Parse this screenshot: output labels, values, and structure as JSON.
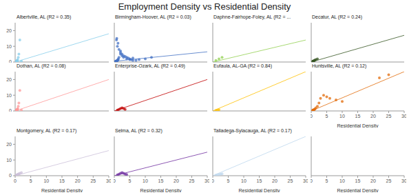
{
  "title": "Employment Density vs Residential Density",
  "chart_data": [
    {
      "type": "scatter",
      "title": "Albertville, AL (R2 = 0.35)",
      "xlim": [
        0,
        30
      ],
      "ylim": [
        0,
        25
      ],
      "yticks": [
        0,
        10,
        20
      ],
      "tick_labels": "y",
      "series": [
        {
          "type": "scatter",
          "color": "#87CEEB",
          "x": [
            0.2,
            0.3,
            0.4,
            0.5,
            0.6,
            0.8,
            1.0,
            1.2,
            1.5,
            2.0,
            0.3,
            0.5,
            0.7
          ],
          "values": [
            0.2,
            0.3,
            0.5,
            0.5,
            1.0,
            1.5,
            3.0,
            5.0,
            14.0,
            0.5,
            0.3,
            0.4,
            0.6
          ]
        },
        {
          "type": "line",
          "color": "#87CEEB",
          "x": [
            0,
            30
          ],
          "values": [
            0,
            18
          ]
        }
      ]
    },
    {
      "type": "scatter",
      "title": "Birmingham-Hoover, AL (R2 = 0.03)",
      "xlim": [
        0,
        30
      ],
      "ylim": [
        0,
        25
      ],
      "tick_labels": false,
      "series": [
        {
          "type": "scatter",
          "color": "#4472C4",
          "x": [
            0.5,
            0.6,
            0.7,
            0.8,
            0.9,
            1.0,
            1.1,
            1.2,
            1.3,
            1.5,
            2.0,
            2.5,
            3.0,
            4.0,
            5.0,
            6.0,
            7.0,
            8.0,
            10.0,
            12.0,
            0.5,
            0.5,
            0.6,
            0.7,
            0.8,
            1.0,
            1.2,
            1.5,
            2.0,
            2.0,
            2.5,
            3.0,
            3.5,
            4.0,
            4.5,
            5.0,
            5.5,
            6.0
          ],
          "values": [
            0.5,
            0.6,
            0.5,
            0.7,
            0.8,
            1.0,
            1.2,
            1.5,
            2.0,
            3.0,
            5.0,
            4.0,
            3.0,
            2.0,
            1.5,
            2.5,
            1.0,
            1.5,
            2.0,
            3.0,
            0.5,
            0.4,
            0.6,
            14.0,
            15.0,
            10.0,
            12.0,
            8.0,
            6.0,
            7.0,
            5.0,
            4.0,
            3.5,
            3.0,
            2.5,
            2.0,
            1.5,
            1.0
          ]
        },
        {
          "type": "line",
          "color": "#4472C4",
          "x": [
            0,
            30
          ],
          "values": [
            0.5,
            6.5
          ]
        }
      ]
    },
    {
      "type": "scatter",
      "title": "Daphne-Fairhope-Foley, AL (R2 = ...",
      "xlim": [
        0,
        30
      ],
      "ylim": [
        0,
        25
      ],
      "tick_labels": false,
      "series": [
        {
          "type": "scatter",
          "color": "#92D050",
          "x": [
            1.0,
            2.0,
            3.0
          ],
          "values": [
            1.0,
            2.0,
            3.0
          ]
        },
        {
          "type": "line",
          "color": "#92D050",
          "x": [
            0,
            30
          ],
          "values": [
            0,
            14
          ]
        }
      ]
    },
    {
      "type": "scatter",
      "title": "Decatur, AL (R2 = 0.24)",
      "xlim": [
        0,
        30
      ],
      "ylim": [
        0,
        25
      ],
      "tick_labels": false,
      "series": [
        {
          "type": "scatter",
          "color": "#375623",
          "x": [
            0.5,
            0.6,
            0.7,
            0.8,
            1.0,
            1.2,
            1.5,
            2.0
          ],
          "values": [
            0.5,
            0.6,
            0.5,
            0.7,
            1.0,
            1.2,
            1.5,
            2.0
          ]
        },
        {
          "type": "line",
          "color": "#375623",
          "x": [
            0,
            30
          ],
          "values": [
            0,
            17
          ]
        }
      ]
    },
    {
      "type": "scatter",
      "title": "Dothan, AL (R2 = 0.08)",
      "xlim": [
        0,
        30
      ],
      "ylim": [
        0,
        25
      ],
      "yticks": [
        0,
        10,
        20
      ],
      "tick_labels": "y",
      "series": [
        {
          "type": "scatter",
          "color": "#FF9999",
          "x": [
            0.2,
            0.3,
            0.4,
            0.5,
            0.6,
            0.7,
            0.8,
            1.0,
            1.2,
            1.5,
            2.0,
            0.3,
            0.5,
            0.4,
            0.6,
            0.8
          ],
          "values": [
            0.5,
            0.3,
            0.4,
            0.6,
            0.8,
            1.0,
            1.5,
            3.0,
            5.0,
            13.0,
            0.5,
            0.4,
            0.3,
            0.5,
            0.7,
            1.0
          ]
        },
        {
          "type": "line",
          "color": "#FF9999",
          "x": [
            0,
            30
          ],
          "values": [
            0,
            20
          ]
        }
      ]
    },
    {
      "type": "scatter",
      "title": "Enterprise-Ozark, AL (R2 = 0.49)",
      "xlim": [
        0,
        30
      ],
      "ylim": [
        0,
        25
      ],
      "tick_labels": false,
      "series": [
        {
          "type": "scatter",
          "color": "#C00000",
          "x": [
            1.0,
            1.5,
            2.0,
            2.5,
            3.0,
            3.5
          ],
          "values": [
            0.5,
            1.0,
            1.5,
            2.0,
            1.5,
            1.0
          ]
        },
        {
          "type": "line",
          "color": "#C00000",
          "x": [
            0,
            30
          ],
          "values": [
            0,
            20
          ]
        }
      ]
    },
    {
      "type": "scatter",
      "title": "Eufaula, AL-GA (R2 = 0.84)",
      "xlim": [
        0,
        30
      ],
      "ylim": [
        0,
        25
      ],
      "tick_labels": false,
      "series": [
        {
          "type": "scatter",
          "color": "#FFC000",
          "x": [
            1.0,
            1.5,
            2.0
          ],
          "values": [
            0.3,
            0.5,
            0.8
          ]
        },
        {
          "type": "line",
          "color": "#FFC000",
          "x": [
            0,
            30
          ],
          "values": [
            0,
            25
          ]
        }
      ]
    },
    {
      "type": "scatter",
      "title": "Huntsville, AL (R2 = 0.12)",
      "xlabel": "Residential Density",
      "xlim": [
        0,
        30
      ],
      "ylim": [
        0,
        25
      ],
      "xticks": [
        0,
        5,
        10,
        15,
        20,
        25,
        30
      ],
      "tick_labels": "x",
      "series": [
        {
          "type": "scatter",
          "color": "#E26B0A",
          "x": [
            0.5,
            0.6,
            0.7,
            0.8,
            1.0,
            1.2,
            1.5,
            2.0,
            2.5,
            3.0,
            4.0,
            5.0,
            6.0,
            8.0,
            10.0,
            22.0,
            25.0
          ],
          "values": [
            0.5,
            0.6,
            0.5,
            0.7,
            1.0,
            1.2,
            2.0,
            3.0,
            5.0,
            8.0,
            10.0,
            9.0,
            8.0,
            7.0,
            6.0,
            21.0,
            23.0
          ]
        },
        {
          "type": "line",
          "color": "#E26B0A",
          "x": [
            0,
            30
          ],
          "values": [
            0,
            25
          ]
        }
      ]
    },
    {
      "type": "scatter",
      "title": "Montgomery, AL (R2 = 0.17)",
      "xlabel": "Residential Density",
      "xlim": [
        0,
        30
      ],
      "ylim": [
        0,
        25
      ],
      "xticks": [
        0,
        5,
        10,
        15,
        20,
        25,
        30
      ],
      "yticks": [
        0,
        10,
        20
      ],
      "series": [
        {
          "type": "scatter",
          "color": "#CCC0DA",
          "x": [
            0.2,
            0.3,
            0.4,
            0.5,
            0.6,
            0.7,
            0.8,
            1.0,
            1.2,
            1.5,
            2.0,
            0.3
          ],
          "values": [
            0.3,
            0.2,
            0.3,
            0.4,
            0.5,
            0.6,
            0.8,
            1.0,
            1.2,
            1.5,
            2.0,
            0.2
          ]
        },
        {
          "type": "line",
          "color": "#CCC0DA",
          "x": [
            0,
            30
          ],
          "values": [
            0,
            16
          ]
        }
      ]
    },
    {
      "type": "scatter",
      "title": "Selma, AL (R2 = 0.32)",
      "xlabel": "Residential Density",
      "xlim": [
        0,
        30
      ],
      "ylim": [
        0,
        25
      ],
      "xticks": [
        0,
        5,
        10,
        15,
        20,
        25,
        30
      ],
      "tick_labels": "x",
      "series": [
        {
          "type": "scatter",
          "color": "#7030A0",
          "x": [
            1.0,
            1.5,
            2.0,
            2.5,
            3.0,
            3.5,
            4.0
          ],
          "values": [
            0.5,
            1.0,
            1.5,
            2.0,
            1.5,
            1.0,
            0.8
          ]
        },
        {
          "type": "line",
          "color": "#7030A0",
          "x": [
            0,
            30
          ],
          "values": [
            0,
            15
          ]
        }
      ]
    },
    {
      "type": "scatter",
      "title": "Talladega-Sylacauga, AL (R2 = 0.17)",
      "xlabel": "Residential Density",
      "xlim": [
        0,
        30
      ],
      "ylim": [
        0,
        25
      ],
      "xticks": [
        0,
        5,
        10,
        15,
        20,
        25,
        30
      ],
      "tick_labels": "x",
      "series": [
        {
          "type": "scatter",
          "color": "#BDD7EE",
          "x": [
            1.0,
            1.5,
            2.0,
            2.5,
            3.0
          ],
          "values": [
            0.3,
            0.5,
            0.8,
            1.0,
            1.2
          ]
        },
        {
          "type": "line",
          "color": "#BDD7EE",
          "x": [
            0,
            30
          ],
          "values": [
            0,
            25
          ]
        }
      ]
    },
    {
      "type": "scatter",
      "xlabel": "Residential Density",
      "xlim": [
        0,
        30
      ],
      "ylim": [
        0,
        25
      ],
      "xticks": [
        0,
        5,
        10,
        15,
        20,
        25,
        30
      ],
      "tick_labels": "x",
      "series": []
    }
  ]
}
